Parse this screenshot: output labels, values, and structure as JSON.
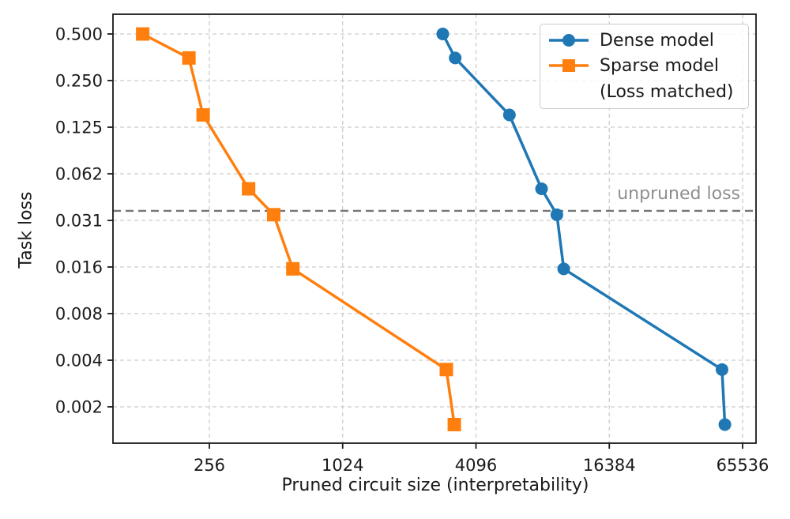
{
  "chart_data": {
    "type": "line",
    "title": "",
    "xlabel": "Pruned circuit size (interpretability)",
    "ylabel": "Task loss",
    "x_scale": "log2",
    "y_scale": "log2",
    "xlim": [
      94,
      75000
    ],
    "ylim": [
      0.0011,
      0.66
    ],
    "grid": true,
    "grid_style": "dashed",
    "legend_position": "upper right",
    "x_ticks": {
      "values": [
        256,
        1024,
        4096,
        16384,
        65536
      ],
      "labels": [
        "256",
        "1024",
        "4096",
        "16384",
        "65536"
      ]
    },
    "y_ticks": {
      "values": [
        0.5,
        0.25,
        0.125,
        0.0625,
        0.03125,
        0.015625,
        0.0078125,
        0.00390625,
        0.001953125
      ],
      "labels": [
        "0.500",
        "0.250",
        "0.125",
        "0.062",
        "0.031",
        "0.016",
        "0.008",
        "0.004",
        "0.002"
      ]
    },
    "series": [
      {
        "name": "Dense model",
        "key": "dense",
        "color": "#1f77b4",
        "marker": "circle",
        "points": [
          [
            2900,
            0.5
          ],
          [
            3300,
            0.35
          ],
          [
            5800,
            0.15
          ],
          [
            8100,
            0.05
          ],
          [
            9500,
            0.034
          ],
          [
            10200,
            0.0152
          ],
          [
            52900,
            0.0034
          ],
          [
            54500,
            0.0015
          ]
        ]
      },
      {
        "name": "Sparse model (Loss matched)",
        "key": "sparse",
        "color": "#ff7f0e",
        "marker": "square",
        "points": [
          [
            128,
            0.5
          ],
          [
            207,
            0.35
          ],
          [
            240,
            0.15
          ],
          [
            385,
            0.05
          ],
          [
            500,
            0.034
          ],
          [
            610,
            0.0152
          ],
          [
            3010,
            0.0034
          ],
          [
            3270,
            0.0015
          ]
        ]
      }
    ],
    "reference_line": {
      "value": 0.036,
      "label": "unpruned loss",
      "color": "#767676",
      "style": "dashed"
    }
  },
  "axes": {
    "xlabel": "Pruned circuit size (interpretability)",
    "ylabel": "Task loss"
  },
  "legend": {
    "dense_label": "Dense model",
    "sparse_label": "Sparse model",
    "sparse_label_cont": "(Loss matched)"
  },
  "annotation": {
    "unpruned_label": "unpruned loss"
  },
  "colors": {
    "dense": "#1f77b4",
    "sparse": "#ff7f0e",
    "reference": "#767676",
    "grid": "#cccccc",
    "spine": "#1a1a1a",
    "annotation_text": "#8e8e8e"
  }
}
